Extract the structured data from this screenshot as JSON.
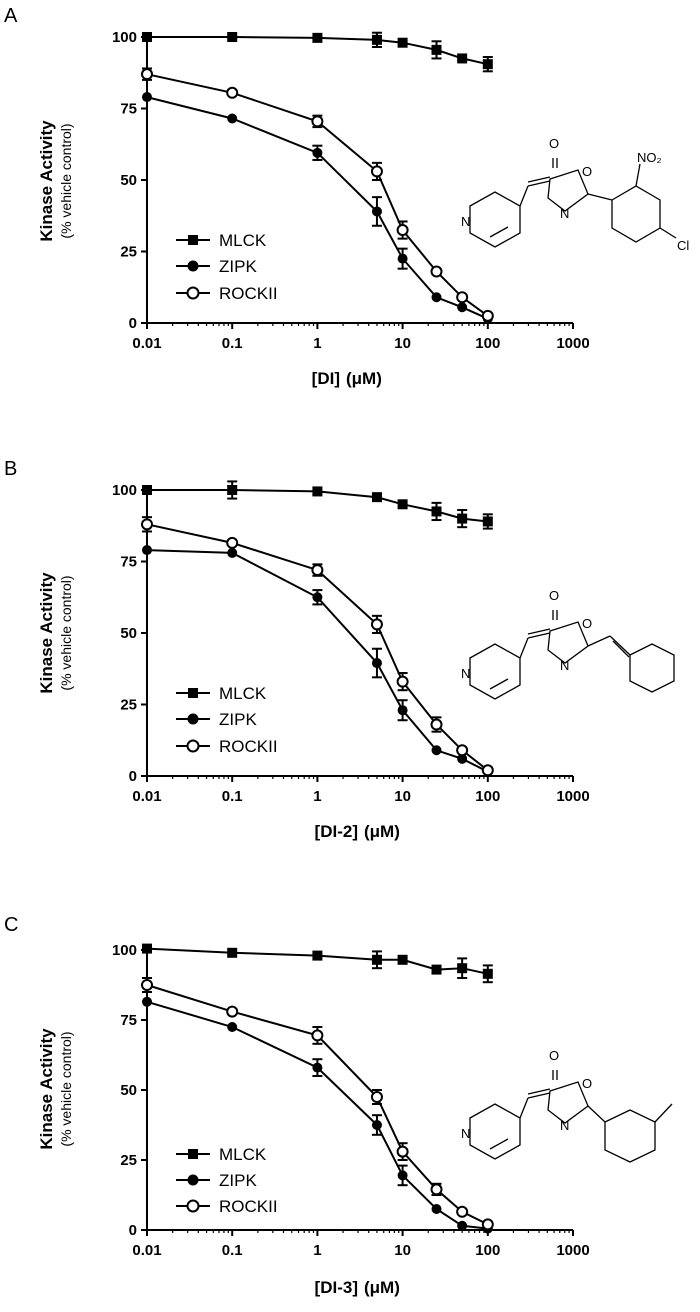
{
  "chart_data": [
    {
      "type": "line",
      "panel_label": "A",
      "xscale": "log",
      "xlim": [
        0.01,
        1000
      ],
      "ylim": [
        0,
        100
      ],
      "xticks": [
        "0.01",
        "0.1",
        "1",
        "10",
        "100",
        "1000"
      ],
      "yticks": [
        "0",
        "25",
        "50",
        "75",
        "100"
      ],
      "xlabel_main": "[DI]",
      "xlabel_unit": "(μM)",
      "ylabel_main": "Kinase Activity",
      "ylabel_sub": "(% vehicle control)",
      "legend_position": "left-center",
      "structure_atoms": {
        "o_ring": "O",
        "n_ring": "N",
        "o_carbonyl": "O",
        "n_pyr": "N",
        "no2": "NO₂",
        "cl": "Cl"
      },
      "series": [
        {
          "name": "MLCK",
          "marker": "square",
          "x": [
            0.01,
            0.1,
            1,
            5,
            10,
            25,
            50,
            100
          ],
          "y": [
            100,
            100,
            99.7,
            99,
            98,
            95.5,
            92.5,
            90.5
          ],
          "err": [
            0,
            0,
            0,
            2.5,
            0,
            3,
            0,
            2.5
          ]
        },
        {
          "name": "ZIPK",
          "marker": "filled-circle",
          "x": [
            0.01,
            0.1,
            1,
            5,
            10,
            25,
            50,
            100
          ],
          "y": [
            79,
            71.5,
            59.5,
            39,
            22.5,
            9,
            5.5,
            1.5
          ],
          "err": [
            0,
            0,
            2.5,
            5,
            3.5,
            0,
            0,
            0
          ]
        },
        {
          "name": "ROCKII",
          "marker": "open-circle",
          "x": [
            0.01,
            0.1,
            1,
            5,
            10,
            25,
            50,
            100
          ],
          "y": [
            87,
            80.5,
            70.5,
            53,
            32.5,
            18,
            9,
            2.5
          ],
          "err": [
            2,
            0,
            2,
            3,
            3,
            0,
            0,
            0
          ]
        }
      ]
    },
    {
      "type": "line",
      "panel_label": "B",
      "xscale": "log",
      "xlim": [
        0.01,
        1000
      ],
      "ylim": [
        0,
        100
      ],
      "xticks": [
        "0.01",
        "0.1",
        "1",
        "10",
        "100",
        "1000"
      ],
      "yticks": [
        "0",
        "25",
        "50",
        "75",
        "100"
      ],
      "xlabel_main": "[DI-2]",
      "xlabel_unit": "(μM)",
      "ylabel_main": "Kinase Activity",
      "ylabel_sub": "(% vehicle control)",
      "legend_position": "left-center",
      "structure_atoms": {
        "o_ring": "O",
        "n_ring": "N",
        "o_carbonyl": "O",
        "n_pyr": "N"
      },
      "series": [
        {
          "name": "MLCK",
          "marker": "square",
          "x": [
            0.01,
            0.1,
            1,
            5,
            10,
            25,
            50,
            100
          ],
          "y": [
            100,
            100,
            99.5,
            97.5,
            95,
            92.5,
            90,
            89
          ],
          "err": [
            0,
            3,
            0,
            0,
            0,
            3,
            3,
            2.5
          ]
        },
        {
          "name": "ZIPK",
          "marker": "filled-circle",
          "x": [
            0.01,
            0.1,
            1,
            5,
            10,
            25,
            50,
            100
          ],
          "y": [
            79,
            78,
            62.5,
            39.5,
            23,
            9,
            6,
            1.5
          ],
          "err": [
            0,
            0,
            2.5,
            5,
            3.5,
            0,
            0,
            0
          ]
        },
        {
          "name": "ROCKII",
          "marker": "open-circle",
          "x": [
            0.01,
            0.1,
            1,
            5,
            10,
            25,
            50,
            100
          ],
          "y": [
            88,
            81.5,
            72,
            53,
            33,
            18,
            9,
            2
          ],
          "err": [
            2.5,
            0,
            2,
            3,
            3,
            2.5,
            0,
            0
          ]
        }
      ]
    },
    {
      "type": "line",
      "panel_label": "C",
      "xscale": "log",
      "xlim": [
        0.01,
        1000
      ],
      "ylim": [
        0,
        100
      ],
      "xticks": [
        "0.01",
        "0.1",
        "1",
        "10",
        "100",
        "1000"
      ],
      "yticks": [
        "0",
        "25",
        "50",
        "75",
        "100"
      ],
      "xlabel_main": "[DI-3]",
      "xlabel_unit": "(μM)",
      "ylabel_main": "Kinase Activity",
      "ylabel_sub": "(% vehicle control)",
      "legend_position": "left-center",
      "structure_atoms": {
        "o_ring": "O",
        "n_ring": "N",
        "o_carbonyl": "O",
        "n_pyr": "N"
      },
      "series": [
        {
          "name": "MLCK",
          "marker": "square",
          "x": [
            0.01,
            0.1,
            1,
            5,
            10,
            25,
            50,
            100
          ],
          "y": [
            100.5,
            99,
            98,
            96.5,
            96.5,
            93,
            93.5,
            91.5
          ],
          "err": [
            0,
            0,
            0,
            3,
            0,
            0,
            3.5,
            3
          ]
        },
        {
          "name": "ZIPK",
          "marker": "filled-circle",
          "x": [
            0.01,
            0.1,
            1,
            5,
            10,
            25,
            50,
            100
          ],
          "y": [
            81.5,
            72.5,
            58,
            37.5,
            19.5,
            7.5,
            1.5,
            0.5
          ],
          "err": [
            0,
            0,
            3,
            3.5,
            3.5,
            0,
            0,
            0
          ]
        },
        {
          "name": "ROCKII",
          "marker": "open-circle",
          "x": [
            0.01,
            0.1,
            1,
            5,
            10,
            25,
            50,
            100
          ],
          "y": [
            87.5,
            78,
            69.5,
            47.5,
            28,
            14.5,
            6.5,
            2
          ],
          "err": [
            2.5,
            0,
            3,
            2.5,
            3,
            2,
            0,
            0
          ]
        }
      ]
    }
  ]
}
